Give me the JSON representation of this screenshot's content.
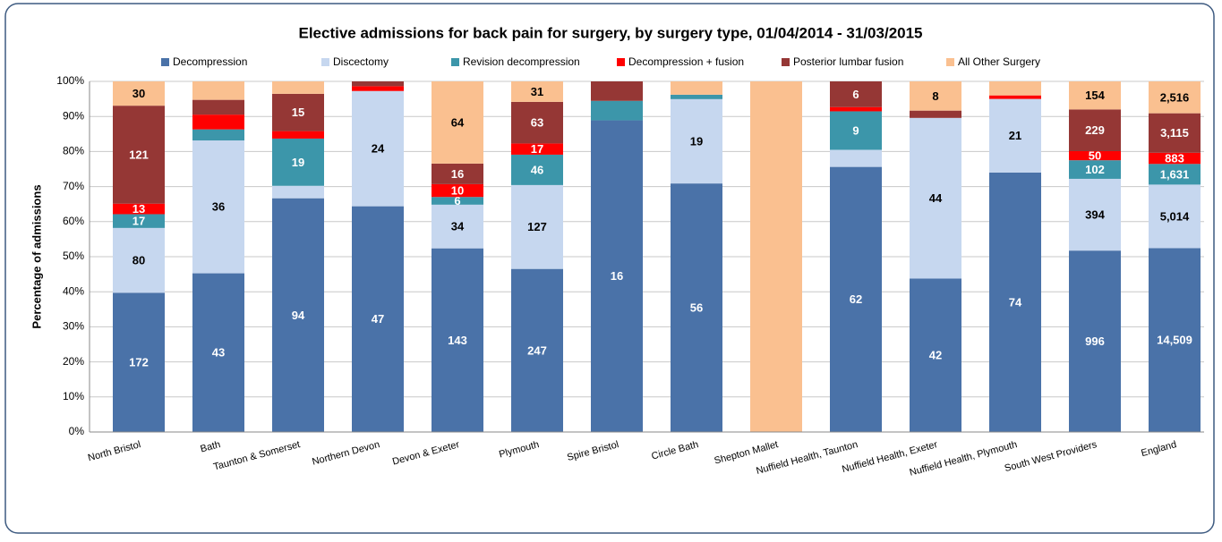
{
  "chart_data": {
    "type": "bar",
    "stacking": "percent",
    "title": "Elective admissions for back pain for surgery, by surgery type, 01/04/2014 - 31/03/2015",
    "y_label": "Percentage of admissions",
    "categories": [
      "North Bristol",
      "Bath",
      "Taunton & Somerset",
      "Northern Devon",
      "Devon & Exeter",
      "Plymouth",
      "Spire Bristol",
      "Circle Bath",
      "Shepton Mallet",
      "Nuffield Health, Taunton",
      "Nuffield Health, Exeter",
      "Nuffield Health, Plymouth",
      "South West Providers",
      "England"
    ],
    "series": [
      {
        "name": "Decompression",
        "color": "#4a72a8",
        "label_color": "#ffffff",
        "values": [
          172,
          43,
          94,
          47,
          143,
          247,
          16,
          56,
          0,
          62,
          42,
          74,
          996,
          14509
        ],
        "value_labels": [
          "172",
          "43",
          "94",
          "47",
          "143",
          "247",
          "16",
          "56",
          null,
          "62",
          "42",
          "74",
          "996",
          "14,509"
        ]
      },
      {
        "name": "Discectomy",
        "color": "#c6d7ef",
        "label_color": "#000000",
        "values": [
          80,
          36,
          5,
          24,
          34,
          127,
          0,
          19,
          0,
          4,
          44,
          21,
          394,
          5014
        ],
        "value_labels": [
          "80",
          "36",
          null,
          "24",
          "34",
          "127",
          null,
          "19",
          null,
          null,
          "44",
          "21",
          "394",
          "5,014"
        ]
      },
      {
        "name": "Revision decompression",
        "color": "#3c96aa",
        "label_color": "#ffffff",
        "values": [
          17,
          3,
          19,
          0,
          6,
          46,
          1,
          1,
          0,
          9,
          0,
          0,
          102,
          1631
        ],
        "value_labels": [
          "17",
          null,
          "19",
          null,
          "6",
          "46",
          null,
          null,
          null,
          "9",
          null,
          null,
          "102",
          "1,631"
        ]
      },
      {
        "name": "Decompression + fusion",
        "color": "#ff0000",
        "label_color": "#ffffff",
        "values": [
          13,
          4,
          3,
          1,
          10,
          17,
          0,
          0,
          0,
          1,
          0,
          1,
          50,
          883
        ],
        "value_labels": [
          "13",
          null,
          null,
          null,
          "10",
          "17",
          null,
          null,
          null,
          null,
          null,
          null,
          "50",
          "883"
        ]
      },
      {
        "name": "Posterior lumbar fusion",
        "color": "#953735",
        "label_color": "#ffffff",
        "values": [
          121,
          4,
          15,
          1,
          16,
          63,
          1,
          0,
          0,
          6,
          2,
          0,
          229,
          3115
        ],
        "value_labels": [
          "121",
          null,
          "15",
          null,
          "16",
          "63",
          null,
          null,
          null,
          "6",
          null,
          null,
          "229",
          "3,115"
        ]
      },
      {
        "name": "All Other Surgery",
        "color": "#fac090",
        "label_color": "#000000",
        "values": [
          30,
          5,
          5,
          0,
          64,
          31,
          0,
          3,
          1,
          0,
          8,
          4,
          154,
          2516
        ],
        "value_labels": [
          "30",
          null,
          null,
          null,
          "64",
          "31",
          null,
          null,
          null,
          null,
          "8",
          null,
          "154",
          "2,516"
        ]
      }
    ],
    "ylim": [
      0,
      100
    ],
    "yticks": [
      {
        "value": 0,
        "label": "0%"
      },
      {
        "value": 10,
        "label": "10%"
      },
      {
        "value": 20,
        "label": "20%"
      },
      {
        "value": 30,
        "label": "30%"
      },
      {
        "value": 40,
        "label": "40%"
      },
      {
        "value": 50,
        "label": "50%"
      },
      {
        "value": 60,
        "label": "60%"
      },
      {
        "value": 70,
        "label": "70%"
      },
      {
        "value": 80,
        "label": "80%"
      },
      {
        "value": 90,
        "label": "90%"
      },
      {
        "value": 100,
        "label": "100%"
      }
    ],
    "grid": true,
    "legend": "top"
  }
}
